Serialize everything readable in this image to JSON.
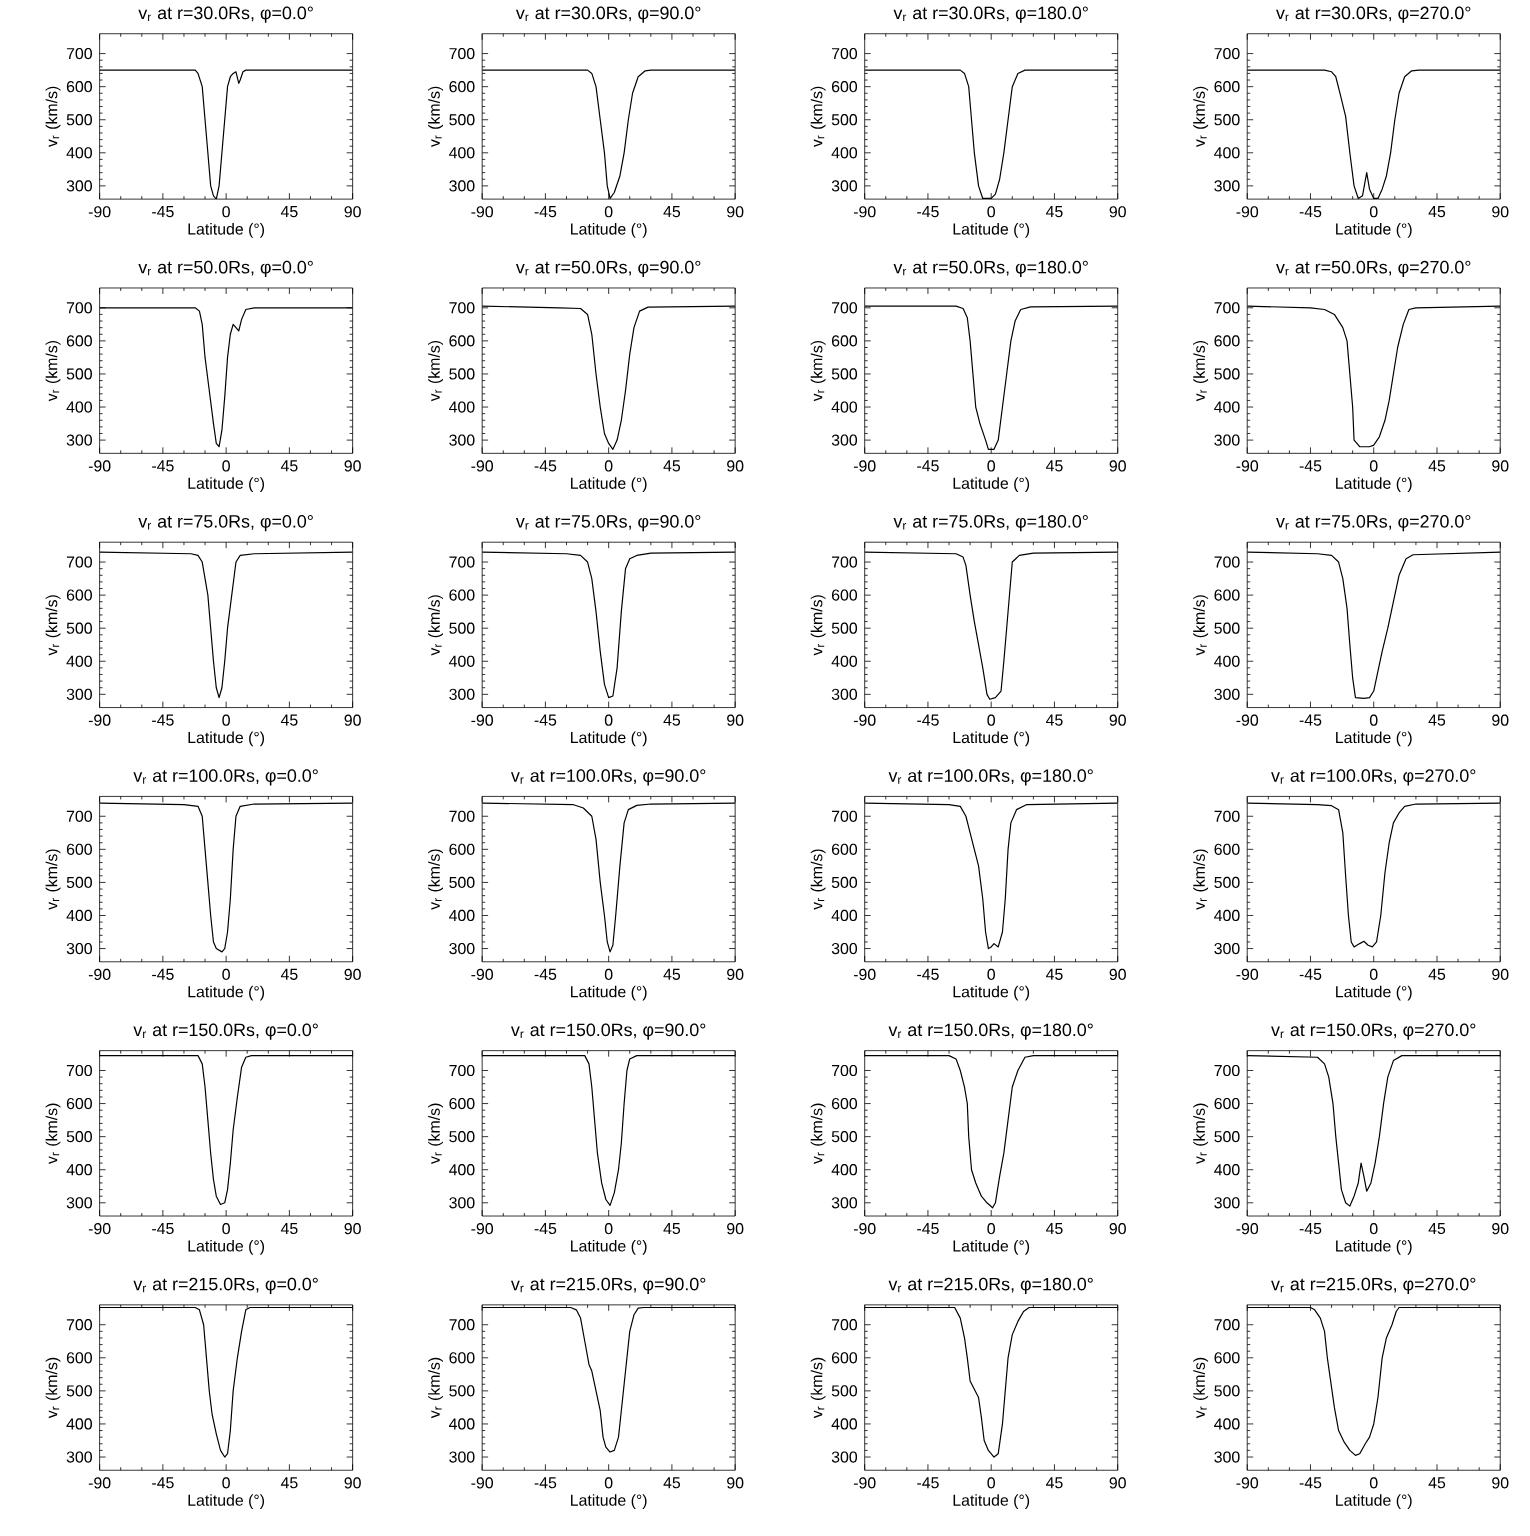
{
  "chart_data": [
    {
      "type": "line",
      "title": "v$_{r}$ at r=30.0Rs, φ=0.0°",
      "xlabel": "Latitude (°)",
      "ylabel": "v$_{r}$ (km/s)",
      "color": "#000000",
      "xlim": [
        -90,
        90
      ],
      "ylim": [
        260,
        760
      ],
      "xticks": [
        -90,
        -45,
        0,
        45,
        90
      ],
      "yticks": [
        300,
        400,
        500,
        600,
        700
      ],
      "x": [
        -90,
        -22,
        -20,
        -17,
        -15,
        -13,
        -11,
        -9,
        -7,
        -5,
        -3,
        -1,
        1,
        3,
        5,
        7,
        9,
        10,
        12,
        14,
        90
      ],
      "values": [
        650,
        650,
        640,
        600,
        500,
        400,
        300,
        270,
        260,
        300,
        400,
        500,
        600,
        630,
        640,
        645,
        610,
        620,
        645,
        650,
        650
      ]
    },
    {
      "type": "line",
      "title": "v$_{r}$ at r=30.0Rs, φ=90.0°",
      "xlabel": "Latitude (°)",
      "ylabel": "v$_{r}$ (km/s)",
      "color": "#000000",
      "xlim": [
        -90,
        90
      ],
      "ylim": [
        260,
        760
      ],
      "xticks": [
        -90,
        -45,
        0,
        45,
        90
      ],
      "yticks": [
        300,
        400,
        500,
        600,
        700
      ],
      "x": [
        -90,
        -15,
        -12,
        -9,
        -6,
        -3,
        -1,
        1,
        4,
        8,
        11,
        14,
        17,
        21,
        26,
        30,
        90
      ],
      "values": [
        650,
        650,
        640,
        600,
        500,
        400,
        300,
        262,
        280,
        330,
        400,
        500,
        580,
        630,
        648,
        650,
        650
      ]
    },
    {
      "type": "line",
      "title": "v$_{r}$ at r=30.0Rs, φ=180.0°",
      "xlabel": "Latitude (°)",
      "ylabel": "v$_{r}$ (km/s)",
      "color": "#000000",
      "xlim": [
        -90,
        90
      ],
      "ylim": [
        260,
        760
      ],
      "xticks": [
        -90,
        -45,
        0,
        45,
        90
      ],
      "yticks": [
        300,
        400,
        500,
        600,
        700
      ],
      "x": [
        -90,
        -22,
        -19,
        -16,
        -14,
        -12,
        -9,
        -6,
        0,
        3,
        6,
        9,
        12,
        15,
        19,
        24,
        90
      ],
      "values": [
        650,
        650,
        640,
        600,
        500,
        400,
        300,
        262,
        262,
        275,
        320,
        400,
        500,
        600,
        640,
        650,
        650
      ]
    },
    {
      "type": "line",
      "title": "v$_{r}$ at r=30.0Rs, φ=270.0°",
      "xlabel": "Latitude (°)",
      "ylabel": "v$_{r}$ (km/s)",
      "color": "#000000",
      "xlim": [
        -90,
        90
      ],
      "ylim": [
        260,
        760
      ],
      "xticks": [
        -90,
        -45,
        0,
        45,
        90
      ],
      "yticks": [
        300,
        400,
        500,
        600,
        700
      ],
      "x": [
        -90,
        -35,
        -30,
        -27,
        -24,
        -20,
        -17,
        -14,
        -11,
        -8,
        -5,
        -3,
        0,
        3,
        6,
        9,
        12,
        15,
        18,
        22,
        27,
        32,
        90
      ],
      "values": [
        650,
        650,
        645,
        630,
        580,
        510,
        400,
        300,
        262,
        270,
        340,
        290,
        262,
        262,
        290,
        330,
        400,
        500,
        580,
        630,
        648,
        650,
        650
      ]
    },
    {
      "type": "line",
      "title": "v$_{r}$ at r=50.0Rs, φ=0.0°",
      "xlabel": "Latitude (°)",
      "ylabel": "v$_{r}$ (km/s)",
      "color": "#000000",
      "xlim": [
        -90,
        90
      ],
      "ylim": [
        260,
        760
      ],
      "xticks": [
        -90,
        -45,
        0,
        45,
        90
      ],
      "yticks": [
        300,
        400,
        500,
        600,
        700
      ],
      "x": [
        -90,
        -22,
        -19,
        -17,
        -15,
        -12,
        -9,
        -7,
        -5,
        -3,
        -1,
        1,
        3,
        5,
        7,
        9,
        11,
        14,
        20,
        90
      ],
      "values": [
        700,
        700,
        690,
        650,
        550,
        450,
        350,
        290,
        280,
        330,
        430,
        550,
        620,
        650,
        640,
        630,
        665,
        695,
        700,
        700
      ]
    },
    {
      "type": "line",
      "title": "v$_{r}$ at r=50.0Rs, φ=90.0°",
      "xlabel": "Latitude (°)",
      "ylabel": "v$_{r}$ (km/s)",
      "color": "#000000",
      "xlim": [
        -90,
        90
      ],
      "ylim": [
        260,
        760
      ],
      "xticks": [
        -90,
        -45,
        0,
        45,
        90
      ],
      "yticks": [
        300,
        400,
        500,
        600,
        700
      ],
      "x": [
        -90,
        -35,
        -20,
        -15,
        -12,
        -9,
        -6,
        -3,
        0,
        3,
        6,
        9,
        12,
        15,
        18,
        22,
        28,
        90
      ],
      "values": [
        705,
        700,
        698,
        680,
        620,
        500,
        400,
        320,
        290,
        272,
        300,
        360,
        450,
        560,
        640,
        690,
        702,
        705
      ]
    },
    {
      "type": "line",
      "title": "v$_{r}$ at r=50.0Rs, φ=180.0°",
      "xlabel": "Latitude (°)",
      "ylabel": "v$_{r}$ (km/s)",
      "color": "#000000",
      "xlim": [
        -90,
        90
      ],
      "ylim": [
        260,
        760
      ],
      "xticks": [
        -90,
        -45,
        0,
        45,
        90
      ],
      "yticks": [
        300,
        400,
        500,
        600,
        700
      ],
      "x": [
        -90,
        -25,
        -20,
        -17,
        -15,
        -13,
        -11,
        -8,
        -4,
        -2,
        2,
        5,
        8,
        11,
        14,
        17,
        21,
        28,
        90
      ],
      "values": [
        705,
        705,
        698,
        670,
        600,
        500,
        400,
        350,
        300,
        272,
        272,
        300,
        400,
        500,
        600,
        660,
        695,
        703,
        705
      ]
    },
    {
      "type": "line",
      "title": "v$_{r}$ at r=50.0Rs, φ=270.0°",
      "xlabel": "Latitude (°)",
      "ylabel": "v$_{r}$ (km/s)",
      "color": "#000000",
      "xlim": [
        -90,
        90
      ],
      "ylim": [
        260,
        760
      ],
      "xticks": [
        -90,
        -45,
        0,
        45,
        90
      ],
      "yticks": [
        300,
        400,
        500,
        600,
        700
      ],
      "x": [
        -90,
        -45,
        -35,
        -28,
        -22,
        -19,
        -17,
        -15,
        -14,
        -10,
        -3,
        0,
        4,
        8,
        11,
        14,
        17,
        21,
        25,
        30,
        90
      ],
      "values": [
        705,
        700,
        695,
        680,
        640,
        600,
        500,
        400,
        300,
        280,
        280,
        285,
        310,
        360,
        420,
        500,
        580,
        650,
        695,
        700,
        705
      ]
    },
    {
      "type": "line",
      "title": "v$_{r}$ at r=75.0Rs, φ=0.0°",
      "xlabel": "Latitude (°)",
      "ylabel": "v$_{r}$ (km/s)",
      "color": "#000000",
      "xlim": [
        -90,
        90
      ],
      "ylim": [
        260,
        760
      ],
      "xticks": [
        -90,
        -45,
        0,
        45,
        90
      ],
      "yticks": [
        300,
        400,
        500,
        600,
        700
      ],
      "x": [
        -90,
        -25,
        -20,
        -17,
        -15,
        -13,
        -11,
        -9,
        -7,
        -5,
        -3,
        -1,
        1,
        4,
        7,
        10,
        20,
        90
      ],
      "values": [
        730,
        725,
        720,
        700,
        650,
        600,
        500,
        400,
        320,
        290,
        320,
        400,
        500,
        600,
        700,
        720,
        725,
        730
      ]
    },
    {
      "type": "line",
      "title": "v$_{r}$ at r=75.0Rs, φ=90.0°",
      "xlabel": "Latitude (°)",
      "ylabel": "v$_{r}$ (km/s)",
      "color": "#000000",
      "xlim": [
        -90,
        90
      ],
      "ylim": [
        260,
        760
      ],
      "xticks": [
        -90,
        -45,
        0,
        45,
        90
      ],
      "yticks": [
        300,
        400,
        500,
        600,
        700
      ],
      "x": [
        -90,
        -30,
        -20,
        -15,
        -12,
        -9,
        -6,
        -3,
        0,
        3,
        6,
        9,
        12,
        15,
        20,
        30,
        90
      ],
      "values": [
        730,
        725,
        720,
        700,
        650,
        550,
        430,
        330,
        290,
        295,
        380,
        550,
        680,
        710,
        720,
        727,
        730
      ]
    },
    {
      "type": "line",
      "title": "v$_{r}$ at r=75.0Rs, φ=180.0°",
      "xlabel": "Latitude (°)",
      "ylabel": "v$_{r}$ (km/s)",
      "color": "#000000",
      "xlim": [
        -90,
        90
      ],
      "ylim": [
        260,
        760
      ],
      "xticks": [
        -90,
        -45,
        0,
        45,
        90
      ],
      "yticks": [
        300,
        400,
        500,
        600,
        700
      ],
      "x": [
        -90,
        -25,
        -20,
        -18,
        -15,
        -12,
        -9,
        -6,
        -3,
        -1,
        3,
        7,
        9,
        11,
        13,
        15,
        20,
        30,
        90
      ],
      "values": [
        730,
        725,
        715,
        690,
        600,
        520,
        450,
        380,
        300,
        285,
        290,
        310,
        400,
        500,
        600,
        700,
        720,
        727,
        730
      ]
    },
    {
      "type": "line",
      "title": "v$_{r}$ at r=75.0Rs, φ=270.0°",
      "xlabel": "Latitude (°)",
      "ylabel": "v$_{r}$ (km/s)",
      "color": "#000000",
      "xlim": [
        -90,
        90
      ],
      "ylim": [
        260,
        760
      ],
      "xticks": [
        -90,
        -45,
        0,
        45,
        90
      ],
      "yticks": [
        300,
        400,
        500,
        600,
        700
      ],
      "x": [
        -90,
        -40,
        -30,
        -25,
        -22,
        -19,
        -17,
        -15,
        -13,
        -7,
        -3,
        0,
        3,
        6,
        10,
        14,
        18,
        23,
        28,
        90
      ],
      "values": [
        730,
        725,
        720,
        700,
        650,
        560,
        450,
        350,
        290,
        288,
        290,
        310,
        370,
        430,
        500,
        580,
        660,
        710,
        722,
        730
      ]
    },
    {
      "type": "line",
      "title": "v$_{r}$ at r=100.0Rs, φ=0.0°",
      "xlabel": "Latitude (°)",
      "ylabel": "v$_{r}$ (km/s)",
      "color": "#000000",
      "xlim": [
        -90,
        90
      ],
      "ylim": [
        260,
        760
      ],
      "xticks": [
        -90,
        -45,
        0,
        45,
        90
      ],
      "yticks": [
        300,
        400,
        500,
        600,
        700
      ],
      "x": [
        -90,
        -30,
        -20,
        -17,
        -15,
        -13,
        -11,
        -9,
        -7,
        -3,
        -1,
        1,
        3,
        5,
        7,
        10,
        20,
        90
      ],
      "values": [
        740,
        735,
        730,
        700,
        600,
        500,
        400,
        320,
        300,
        290,
        300,
        350,
        450,
        600,
        700,
        730,
        737,
        740
      ]
    },
    {
      "type": "line",
      "title": "v$_{r}$ at r=100.0Rs, φ=90.0°",
      "xlabel": "Latitude (°)",
      "ylabel": "v$_{r}$ (km/s)",
      "color": "#000000",
      "xlim": [
        -90,
        90
      ],
      "ylim": [
        260,
        760
      ],
      "xticks": [
        -90,
        -45,
        0,
        45,
        90
      ],
      "yticks": [
        300,
        400,
        500,
        600,
        700
      ],
      "x": [
        -90,
        -25,
        -18,
        -12,
        -9,
        -6,
        -3,
        -1,
        1,
        3,
        5,
        8,
        11,
        14,
        20,
        30,
        90
      ],
      "values": [
        740,
        735,
        725,
        700,
        630,
        500,
        400,
        320,
        290,
        310,
        400,
        550,
        680,
        720,
        733,
        737,
        740
      ]
    },
    {
      "type": "line",
      "title": "v$_{r}$ at r=100.0Rs, φ=180.0°",
      "xlabel": "Latitude (°)",
      "ylabel": "v$_{r}$ (km/s)",
      "color": "#000000",
      "xlim": [
        -90,
        90
      ],
      "ylim": [
        260,
        760
      ],
      "xticks": [
        -90,
        -45,
        0,
        45,
        90
      ],
      "yticks": [
        300,
        400,
        500,
        600,
        700
      ],
      "x": [
        -90,
        -30,
        -22,
        -18,
        -15,
        -12,
        -9,
        -6,
        -4,
        -2,
        0,
        2,
        5,
        8,
        10,
        12,
        14,
        18,
        25,
        90
      ],
      "values": [
        740,
        735,
        730,
        700,
        650,
        600,
        550,
        450,
        350,
        300,
        305,
        315,
        305,
        350,
        450,
        600,
        680,
        720,
        735,
        740
      ]
    },
    {
      "type": "line",
      "title": "v$_{r}$ at r=100.0Rs, φ=270.0°",
      "xlabel": "Latitude (°)",
      "ylabel": "v$_{r}$ (km/s)",
      "color": "#000000",
      "xlim": [
        -90,
        90
      ],
      "ylim": [
        260,
        760
      ],
      "xticks": [
        -90,
        -45,
        0,
        45,
        90
      ],
      "yticks": [
        300,
        400,
        500,
        600,
        700
      ],
      "x": [
        -90,
        -40,
        -30,
        -25,
        -22,
        -20,
        -18,
        -16,
        -14,
        -10,
        -7,
        -4,
        -1,
        2,
        5,
        8,
        11,
        14,
        18,
        22,
        30,
        90
      ],
      "values": [
        740,
        735,
        732,
        720,
        650,
        520,
        400,
        320,
        305,
        315,
        322,
        310,
        305,
        320,
        400,
        530,
        620,
        680,
        710,
        730,
        737,
        740
      ]
    },
    {
      "type": "line",
      "title": "v$_{r}$ at r=150.0Rs, φ=0.0°",
      "xlabel": "Latitude (°)",
      "ylabel": "v$_{r}$ (km/s)",
      "color": "#000000",
      "xlim": [
        -90,
        90
      ],
      "ylim": [
        260,
        760
      ],
      "xticks": [
        -90,
        -45,
        0,
        45,
        90
      ],
      "yticks": [
        300,
        400,
        500,
        600,
        700
      ],
      "x": [
        -90,
        -20,
        -17,
        -15,
        -13,
        -11,
        -9,
        -7,
        -4,
        -1,
        1,
        3,
        5,
        8,
        11,
        14,
        18,
        90
      ],
      "values": [
        745,
        745,
        720,
        650,
        550,
        450,
        370,
        320,
        295,
        300,
        340,
        420,
        520,
        620,
        710,
        740,
        745,
        745
      ]
    },
    {
      "type": "line",
      "title": "v$_{r}$ at r=150.0Rs, φ=90.0°",
      "xlabel": "Latitude (°)",
      "ylabel": "v$_{r}$ (km/s)",
      "color": "#000000",
      "xlim": [
        -90,
        90
      ],
      "ylim": [
        260,
        760
      ],
      "xticks": [
        -90,
        -45,
        0,
        45,
        90
      ],
      "yticks": [
        300,
        400,
        500,
        600,
        700
      ],
      "x": [
        -90,
        -17,
        -14,
        -12,
        -10,
        -8,
        -5,
        -2,
        1,
        4,
        7,
        9,
        11,
        13,
        15,
        20,
        90
      ],
      "values": [
        745,
        745,
        720,
        650,
        550,
        450,
        360,
        310,
        292,
        330,
        400,
        480,
        600,
        700,
        735,
        745,
        745
      ]
    },
    {
      "type": "line",
      "title": "v$_{r}$ at r=150.0Rs, φ=180.0°",
      "xlabel": "Latitude (°)",
      "ylabel": "v$_{r}$ (km/s)",
      "color": "#000000",
      "xlim": [
        -90,
        90
      ],
      "ylim": [
        260,
        760
      ],
      "xticks": [
        -90,
        -45,
        0,
        45,
        90
      ],
      "yticks": [
        300,
        400,
        500,
        600,
        700
      ],
      "x": [
        -90,
        -30,
        -25,
        -22,
        -19,
        -17,
        -16,
        -14,
        -11,
        -7,
        -3,
        1,
        3,
        6,
        9,
        12,
        15,
        19,
        24,
        30,
        90
      ],
      "values": [
        745,
        745,
        735,
        700,
        650,
        600,
        500,
        400,
        360,
        320,
        300,
        285,
        300,
        380,
        450,
        550,
        650,
        700,
        740,
        745,
        745
      ]
    },
    {
      "type": "line",
      "title": "v$_{r}$ at r=150.0Rs, φ=270.0°",
      "xlabel": "Latitude (°)",
      "ylabel": "v$_{r}$ (km/s)",
      "color": "#000000",
      "xlim": [
        -90,
        90
      ],
      "ylim": [
        260,
        760
      ],
      "xticks": [
        -90,
        -45,
        0,
        45,
        90
      ],
      "yticks": [
        300,
        400,
        500,
        600,
        700
      ],
      "x": [
        -90,
        -40,
        -35,
        -32,
        -29,
        -27,
        -25,
        -23,
        -20,
        -17,
        -14,
        -11,
        -9,
        -7,
        -5,
        -2,
        1,
        4,
        7,
        10,
        14,
        20,
        90
      ],
      "values": [
        745,
        740,
        720,
        680,
        600,
        500,
        420,
        340,
        300,
        290,
        320,
        360,
        420,
        380,
        335,
        360,
        420,
        500,
        600,
        680,
        730,
        745,
        745
      ]
    },
    {
      "type": "line",
      "title": "v$_{r}$ at r=215.0Rs, φ=0.0°",
      "xlabel": "Latitude (°)",
      "ylabel": "v$_{r}$ (km/s)",
      "color": "#000000",
      "xlim": [
        -90,
        90
      ],
      "ylim": [
        260,
        760
      ],
      "xticks": [
        -90,
        -45,
        0,
        45,
        90
      ],
      "yticks": [
        300,
        400,
        500,
        600,
        700
      ],
      "x": [
        -90,
        -22,
        -19,
        -16,
        -14,
        -12,
        -10,
        -7,
        -4,
        -1,
        1,
        3,
        5,
        8,
        11,
        14,
        17,
        90
      ],
      "values": [
        752,
        752,
        745,
        700,
        600,
        500,
        430,
        370,
        320,
        300,
        310,
        380,
        500,
        600,
        680,
        745,
        752,
        752
      ]
    },
    {
      "type": "line",
      "title": "v$_{r}$ at r=215.0Rs, φ=90.0°",
      "xlabel": "Latitude (°)",
      "ylabel": "v$_{r}$ (km/s)",
      "color": "#000000",
      "xlim": [
        -90,
        90
      ],
      "ylim": [
        260,
        760
      ],
      "xticks": [
        -90,
        -45,
        0,
        45,
        90
      ],
      "yticks": [
        300,
        400,
        500,
        600,
        700
      ],
      "x": [
        -90,
        -27,
        -23,
        -20,
        -17,
        -14,
        -12,
        -9,
        -6,
        -4,
        -2,
        1,
        4,
        7,
        9,
        12,
        15,
        18,
        21,
        25,
        90
      ],
      "values": [
        752,
        752,
        745,
        720,
        650,
        580,
        560,
        500,
        440,
        360,
        330,
        315,
        320,
        360,
        440,
        560,
        680,
        730,
        750,
        752,
        752
      ]
    },
    {
      "type": "line",
      "title": "v$_{r}$ at r=215.0Rs, φ=180.0°",
      "xlabel": "Latitude (°)",
      "ylabel": "v$_{r}$ (km/s)",
      "color": "#000000",
      "xlim": [
        -90,
        90
      ],
      "ylim": [
        260,
        760
      ],
      "xticks": [
        -90,
        -45,
        0,
        45,
        90
      ],
      "yticks": [
        300,
        400,
        500,
        600,
        700
      ],
      "x": [
        -90,
        -26,
        -22,
        -19,
        -17,
        -15,
        -12,
        -9,
        -7,
        -5,
        -2,
        2,
        5,
        8,
        10,
        12,
        15,
        19,
        23,
        27,
        90
      ],
      "values": [
        752,
        752,
        720,
        660,
        600,
        530,
        505,
        480,
        420,
        350,
        320,
        300,
        310,
        400,
        500,
        600,
        670,
        710,
        740,
        752,
        752
      ]
    },
    {
      "type": "line",
      "title": "v$_{r}$ at r=215.0Rs, φ=270.0°",
      "xlabel": "Latitude (°)",
      "ylabel": "v$_{r}$ (km/s)",
      "color": "#000000",
      "xlim": [
        -90,
        90
      ],
      "ylim": [
        260,
        760
      ],
      "xticks": [
        -90,
        -45,
        0,
        45,
        90
      ],
      "yticks": [
        300,
        400,
        500,
        600,
        700
      ],
      "x": [
        -90,
        -45,
        -42,
        -38,
        -35,
        -33,
        -31,
        -28,
        -25,
        -21,
        -17,
        -13,
        -10,
        -6,
        -3,
        0,
        3,
        6,
        9,
        13,
        16,
        18,
        90
      ],
      "values": [
        752,
        752,
        745,
        720,
        680,
        600,
        540,
        450,
        380,
        345,
        320,
        305,
        310,
        340,
        360,
        400,
        480,
        600,
        660,
        700,
        740,
        752,
        752
      ]
    }
  ]
}
